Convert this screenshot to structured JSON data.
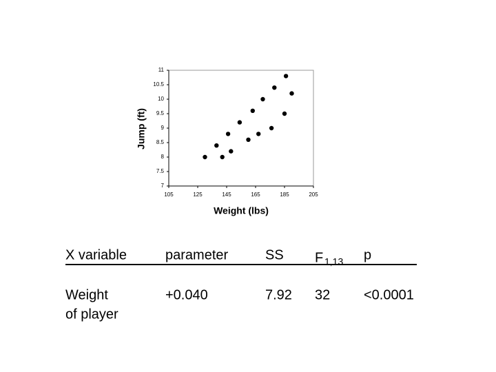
{
  "chart_data": {
    "type": "scatter",
    "x_label": "Weight (lbs)",
    "y_label": "Jump (ft)",
    "x": [
      130,
      138,
      142,
      146,
      148,
      154,
      160,
      163,
      167,
      170,
      176,
      178,
      185,
      186,
      190
    ],
    "y": [
      8,
      8.4,
      8,
      8.8,
      8.2,
      9.2,
      8.6,
      9.6,
      8.8,
      10,
      9,
      10.4,
      9.5,
      10.8,
      10.2
    ],
    "color": "#000000",
    "xlim": [
      105,
      205
    ],
    "xticks": [
      105,
      125,
      145,
      165,
      185,
      205
    ],
    "ylim": [
      7,
      11
    ],
    "yticks": [
      7,
      7.5,
      8,
      8.5,
      9,
      9.5,
      10,
      10.5,
      11
    ]
  },
  "table": {
    "header": [
      "X variable",
      "parameter",
      "SS",
      "F",
      "p"
    ],
    "header_subscript": "1,13",
    "rows": [
      [
        "Weight",
        "+0.040",
        "7.92",
        "32",
        "<0.0001"
      ]
    ],
    "row_second_line": "of player"
  }
}
